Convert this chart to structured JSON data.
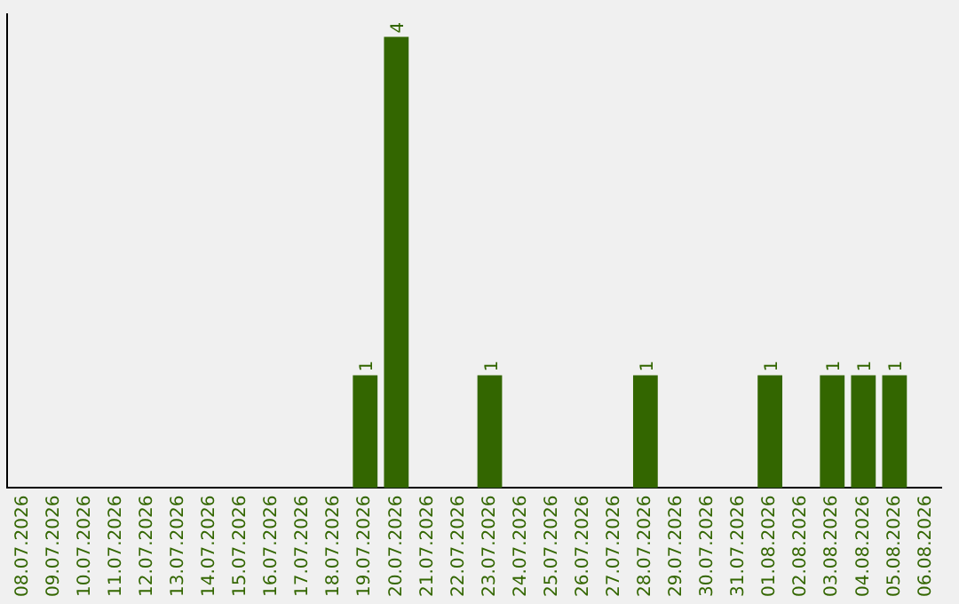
{
  "chart_data": {
    "type": "bar",
    "categories": [
      "08.07.2026",
      "09.07.2026",
      "10.07.2026",
      "11.07.2026",
      "12.07.2026",
      "13.07.2026",
      "14.07.2026",
      "15.07.2026",
      "16.07.2026",
      "17.07.2026",
      "18.07.2026",
      "19.07.2026",
      "20.07.2026",
      "21.07.2026",
      "22.07.2026",
      "23.07.2026",
      "24.07.2026",
      "25.07.2026",
      "26.07.2026",
      "27.07.2026",
      "28.07.2026",
      "29.07.2026",
      "30.07.2026",
      "31.07.2026",
      "01.08.2026",
      "02.08.2026",
      "03.08.2026",
      "04.08.2026",
      "05.08.2026",
      "06.08.2026"
    ],
    "values": [
      0,
      0,
      0,
      0,
      0,
      0,
      0,
      0,
      0,
      0,
      0,
      1,
      4,
      0,
      0,
      1,
      0,
      0,
      0,
      0,
      1,
      0,
      0,
      0,
      1,
      0,
      1,
      1,
      1,
      0
    ],
    "value_labels": [
      null,
      null,
      null,
      null,
      null,
      null,
      null,
      null,
      null,
      null,
      null,
      "1",
      "4",
      null,
      null,
      "1",
      null,
      null,
      null,
      null,
      "1",
      null,
      null,
      null,
      "1",
      null,
      "1",
      "1",
      "1",
      null
    ],
    "color": "#336600"
  }
}
